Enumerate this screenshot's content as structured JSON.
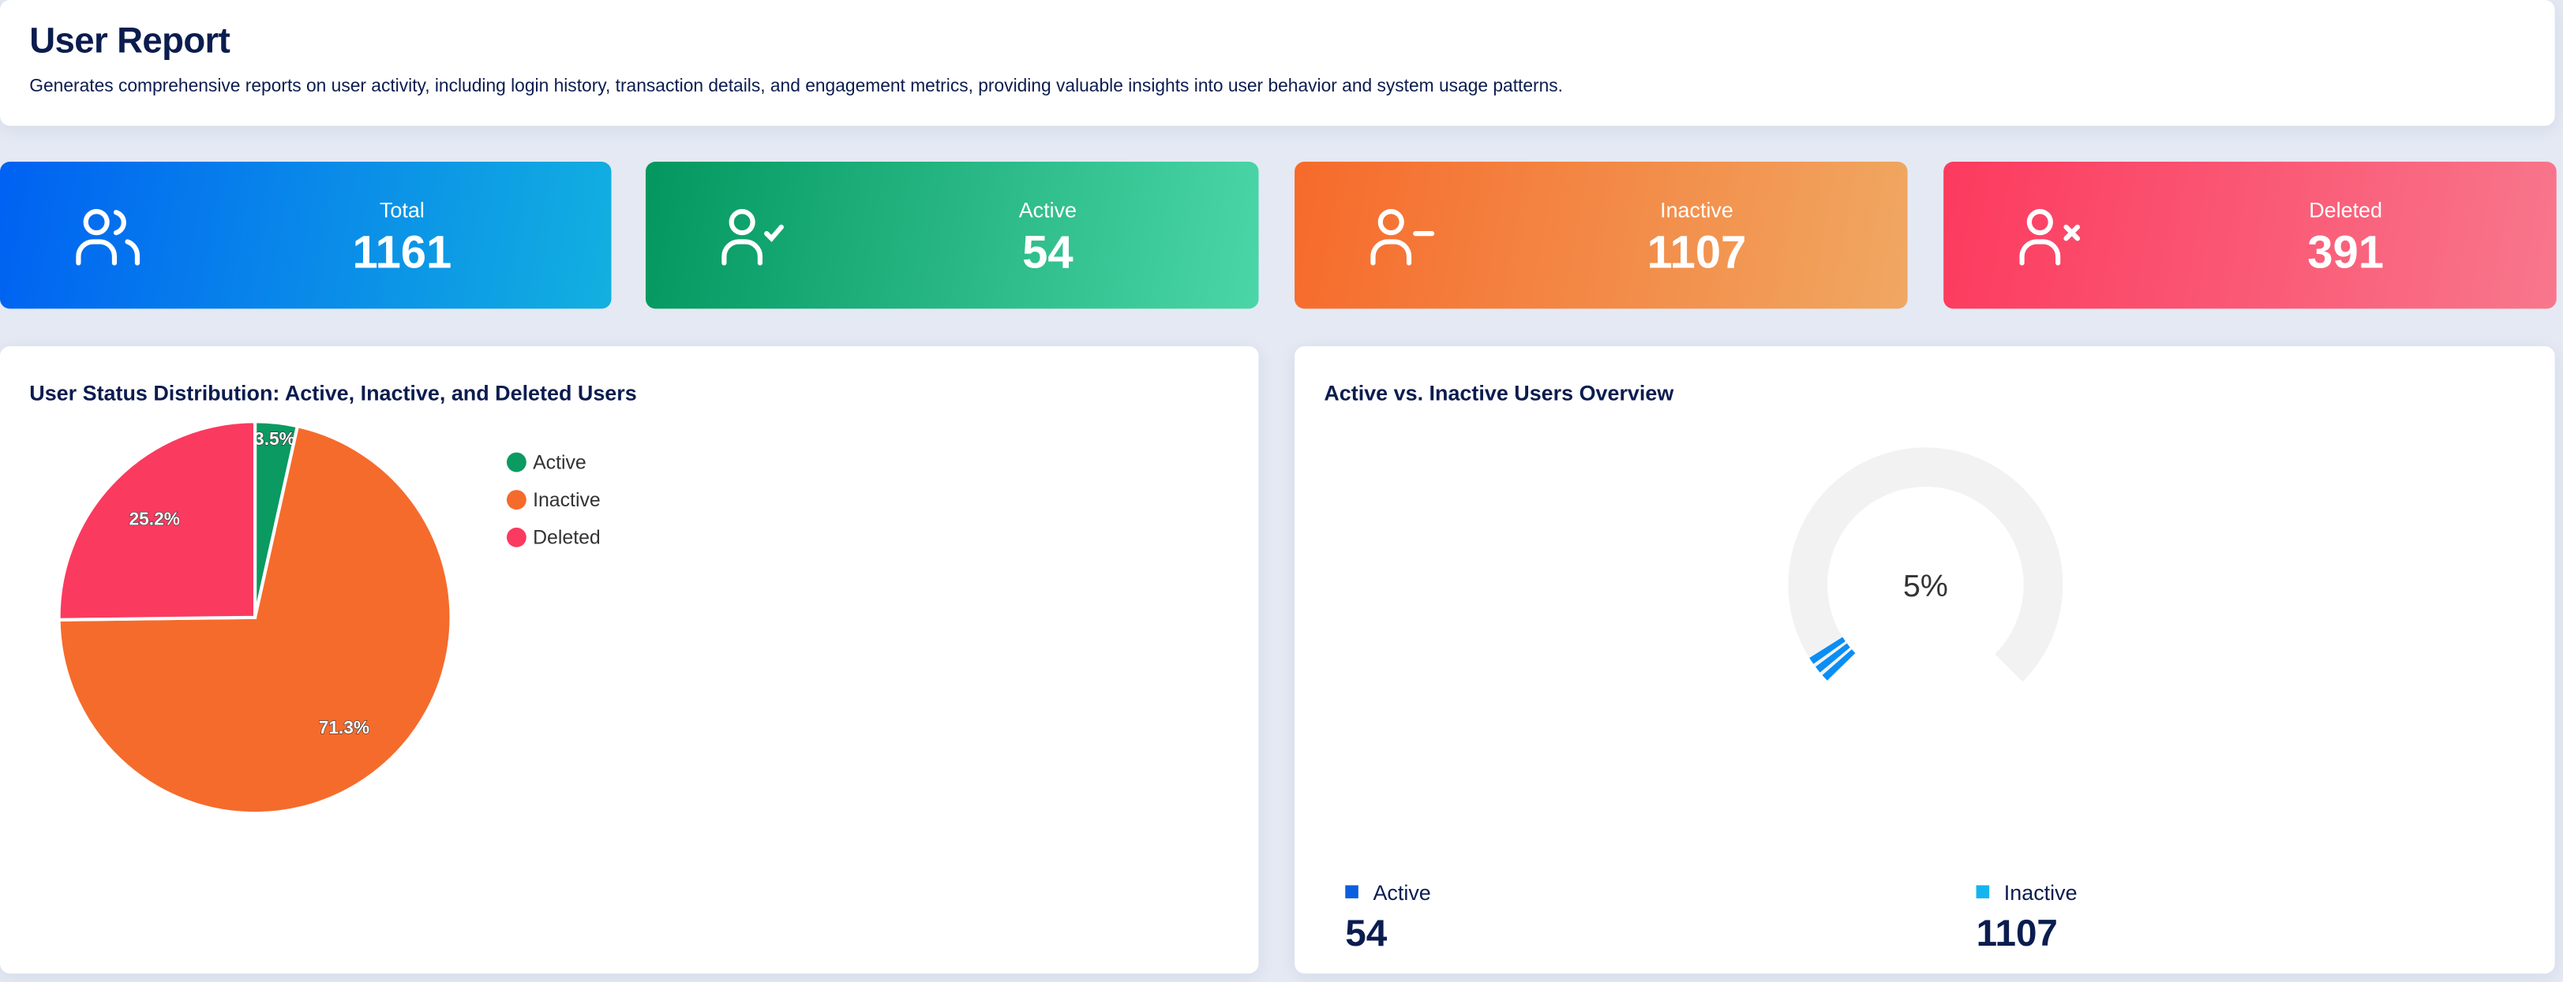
{
  "header": {
    "title": "User Report",
    "description": "Generates comprehensive reports on user activity, including login history, transaction details, and engagement metrics, providing valuable insights into user behavior and system usage patterns."
  },
  "stats": [
    {
      "label": "Total",
      "value": "1161",
      "icon": "users-icon",
      "colors": [
        "#0061f2",
        "#12b0e0"
      ]
    },
    {
      "label": "Active",
      "value": "54",
      "icon": "user-check-icon",
      "colors": [
        "#03975f",
        "#4bd6a8"
      ]
    },
    {
      "label": "Inactive",
      "value": "1107",
      "icon": "user-minus-icon",
      "colors": [
        "#f66a2b",
        "#f0a862"
      ]
    },
    {
      "label": "Deleted",
      "value": "391",
      "icon": "user-x-icon",
      "colors": [
        "#fc3a5e",
        "#f8778c"
      ]
    }
  ],
  "pie_card": {
    "title": "User Status Distribution: Active, Inactive, and Deleted Users"
  },
  "gauge_card": {
    "title": "Active vs. Inactive Users Overview",
    "center_label": "5%",
    "legend": [
      {
        "label": "Active",
        "value": "54",
        "color": "#0a5fe0"
      },
      {
        "label": "Inactive",
        "value": "1107",
        "color": "#14b4f0"
      }
    ]
  },
  "chart_data": [
    {
      "type": "pie",
      "categories": [
        "Active",
        "Inactive",
        "Deleted"
      ],
      "values": [
        54,
        1107,
        391
      ],
      "labels": [
        "3.5%",
        "71.3%",
        "25.2%"
      ],
      "colors": [
        "#0a9a62",
        "#f56b2c",
        "#fb3a5f"
      ],
      "legend": "right"
    },
    {
      "type": "gauge",
      "value": 5,
      "max": 100,
      "label": "5%",
      "colors": {
        "track": "#f2f2f2",
        "fill": "#0a8ef5"
      }
    }
  ]
}
